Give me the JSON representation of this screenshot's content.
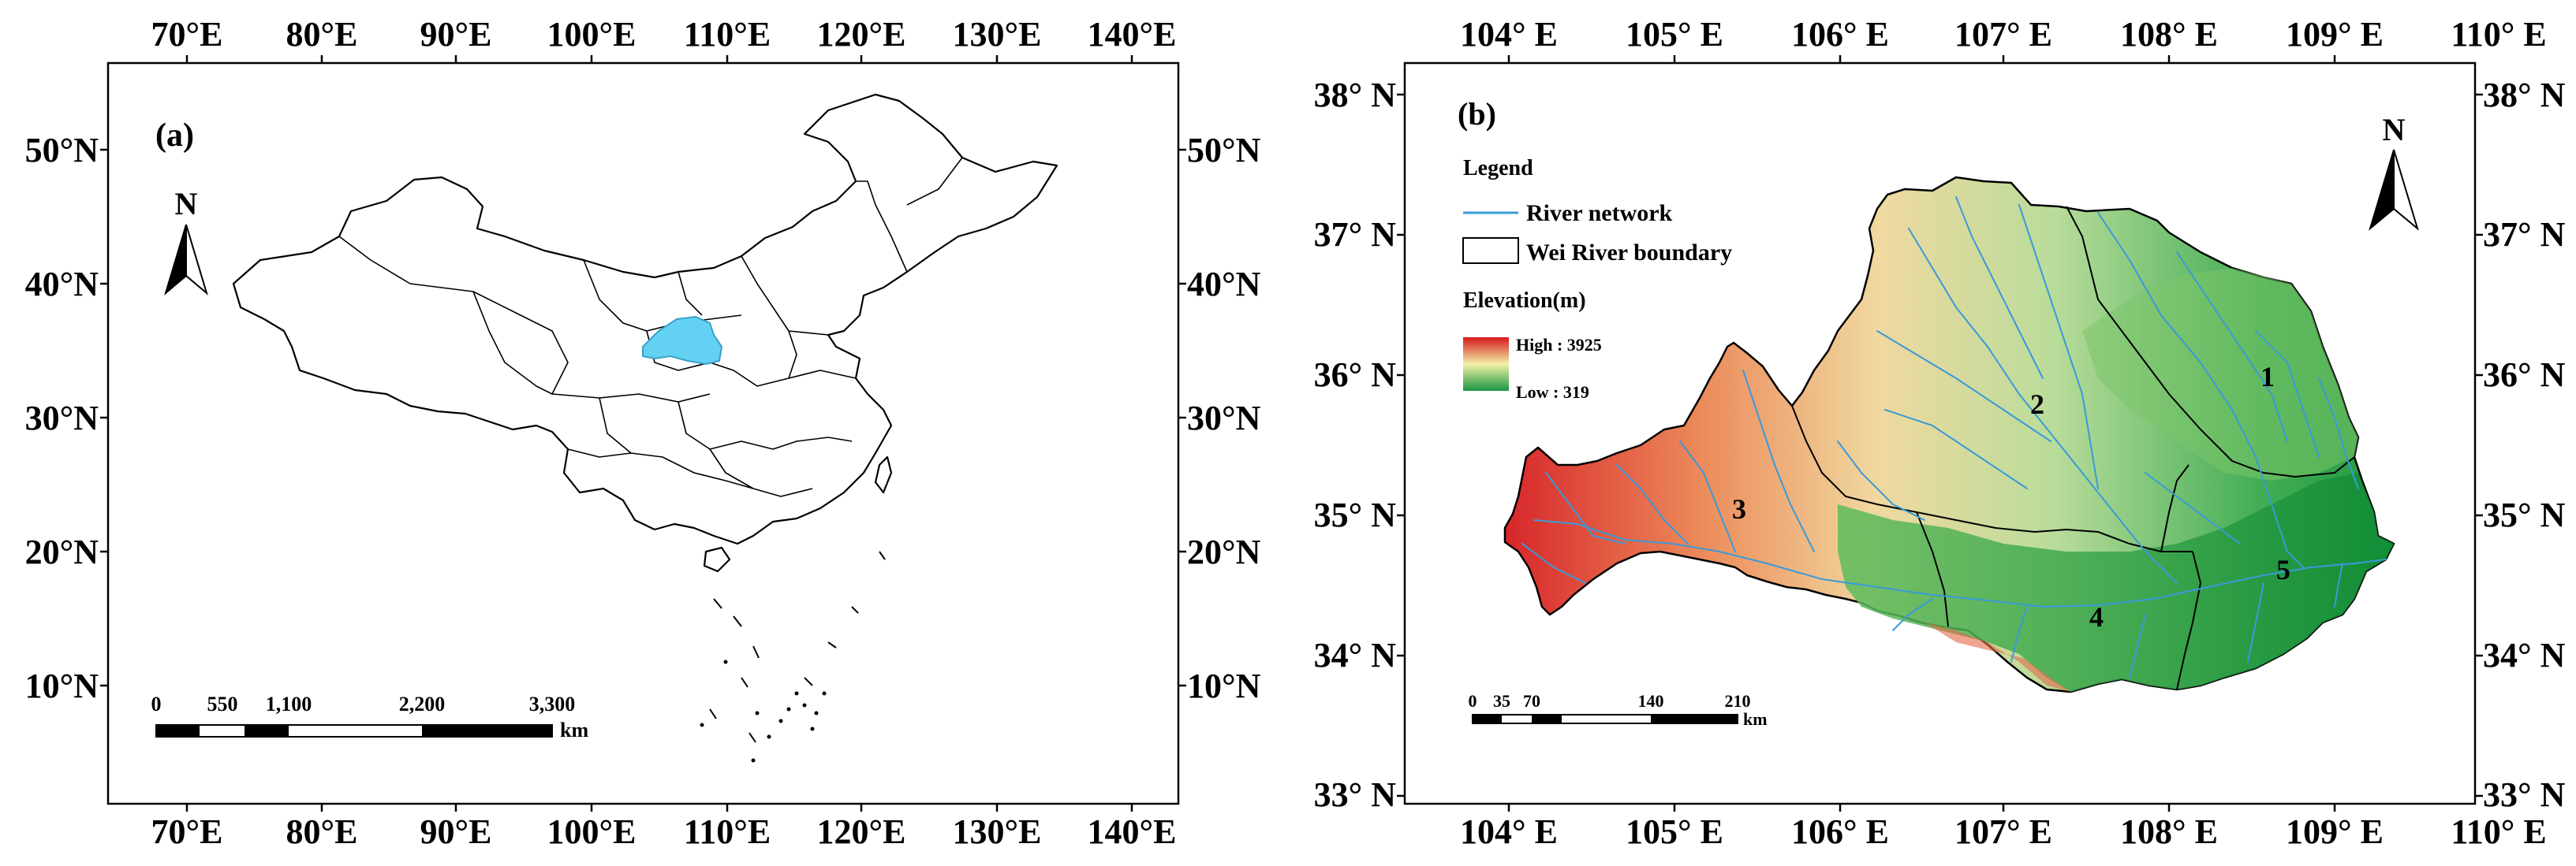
{
  "panel_a": {
    "label": "(a)",
    "north": "N",
    "top_ticks": [
      "70°E",
      "80°E",
      "90°E",
      "100°E",
      "110°E",
      "120°E",
      "130°E",
      "140°E"
    ],
    "bottom_ticks": [
      "70°E",
      "80°E",
      "90°E",
      "100°E",
      "110°E",
      "120°E",
      "130°E",
      "140°E"
    ],
    "left_ticks": [
      "50°N",
      "40°N",
      "30°N",
      "20°N",
      "10°N"
    ],
    "right_ticks": [
      "50°N",
      "40°N",
      "30°N",
      "20°N",
      "10°N"
    ],
    "scale_labels": [
      "0",
      "550",
      "1,100",
      "2,200",
      "3,300"
    ],
    "scale_unit": "km",
    "highlight_color": "#63d2f2"
  },
  "panel_b": {
    "label": "(b)",
    "north": "N",
    "top_ticks": [
      "104° E",
      "105° E",
      "106° E",
      "107° E",
      "108° E",
      "109° E",
      "110° E"
    ],
    "bottom_ticks": [
      "104° E",
      "105° E",
      "106° E",
      "107° E",
      "108° E",
      "109° E",
      "110° E"
    ],
    "left_ticks": [
      "38° N",
      "37° N",
      "36° N",
      "35° N",
      "34° N",
      "33° N"
    ],
    "right_ticks": [
      "38° N",
      "37° N",
      "36° N",
      "35° N",
      "34° N",
      "33° N"
    ],
    "legend": {
      "title": "Legend",
      "river": "River network",
      "boundary": "Wei River boundary",
      "elevation_title": "Elevation(m)",
      "high": "High : 3925",
      "low": "Low : 319"
    },
    "subbasins": [
      "1",
      "2",
      "3",
      "4",
      "5"
    ],
    "scale_labels": [
      "0",
      "35",
      "70",
      "140",
      "210"
    ],
    "scale_unit": "km",
    "river_color": "#3a9ad9",
    "elev_high_color": "#d7191c",
    "elev_low_color": "#1a9641"
  }
}
